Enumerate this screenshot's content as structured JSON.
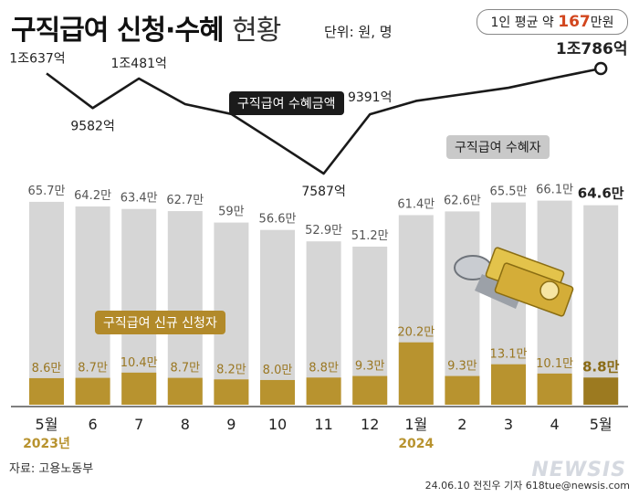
{
  "header": {
    "title_bold": "구직급여 신청·수혜",
    "title_thin": "현황",
    "unit": "단위: 원, 명",
    "avg_prefix": "1인 평균 약",
    "avg_value": "167",
    "avg_suffix": "만원"
  },
  "tags": {
    "amount": "구직급여 수혜금액",
    "recipients": "구직급여 수혜자",
    "applicants": "구직급여 신규 신청자"
  },
  "footer": {
    "source": "자료: 고용노동부",
    "credit": "24.06.10 전진우 기자 618tue@newsis.com",
    "logo": "NEWSIS"
  },
  "colors": {
    "recipients_bar": "#d6d6d6",
    "applicants_bar": "#b8932f",
    "applicants_last": "#9c7a20",
    "line": "#1a1a1a",
    "highlight": "#d2461e"
  },
  "chart_data": {
    "type": "bar",
    "categories": [
      "5월",
      "6",
      "7",
      "8",
      "9",
      "10",
      "11",
      "12",
      "1월",
      "2",
      "3",
      "4",
      "5월"
    ],
    "year_labels": [
      {
        "index": 0,
        "label": "2023년"
      },
      {
        "index": 8,
        "label": "2024"
      }
    ],
    "series": [
      {
        "name": "구직급여 수혜자",
        "type": "bar",
        "values": [
          65.7,
          64.2,
          63.4,
          62.7,
          59,
          56.6,
          52.9,
          51.2,
          61.4,
          62.6,
          65.5,
          66.1,
          64.6
        ],
        "labels": [
          "65.7만",
          "64.2만",
          "63.4만",
          "62.7만",
          "59만",
          "56.6만",
          "52.9만",
          "51.2만",
          "61.4만",
          "62.6만",
          "65.5만",
          "66.1만",
          "64.6만"
        ]
      },
      {
        "name": "구직급여 신규 신청자",
        "type": "bar",
        "values": [
          8.6,
          8.7,
          10.4,
          8.7,
          8.2,
          8.0,
          8.8,
          9.3,
          20.2,
          9.3,
          13.1,
          10.1,
          8.8
        ],
        "labels": [
          "8.6만",
          "8.7만",
          "10.4만",
          "8.7만",
          "8.2만",
          "8.0만",
          "8.8만",
          "9.3만",
          "20.2만",
          "9.3만",
          "13.1만",
          "10.1만",
          "8.8만"
        ]
      },
      {
        "name": "구직급여 수혜금액",
        "type": "line",
        "unit": "억원",
        "values": [
          10637,
          9582,
          10481,
          9700,
          9400,
          8500,
          7587,
          9391,
          9800,
          10000,
          10200,
          10500,
          10786
        ],
        "labels": [
          "1조637억",
          "9582억",
          "1조481억",
          "",
          "",
          "",
          "7587억",
          "9391억",
          "",
          "",
          "",
          "",
          "1조786억"
        ]
      }
    ]
  }
}
